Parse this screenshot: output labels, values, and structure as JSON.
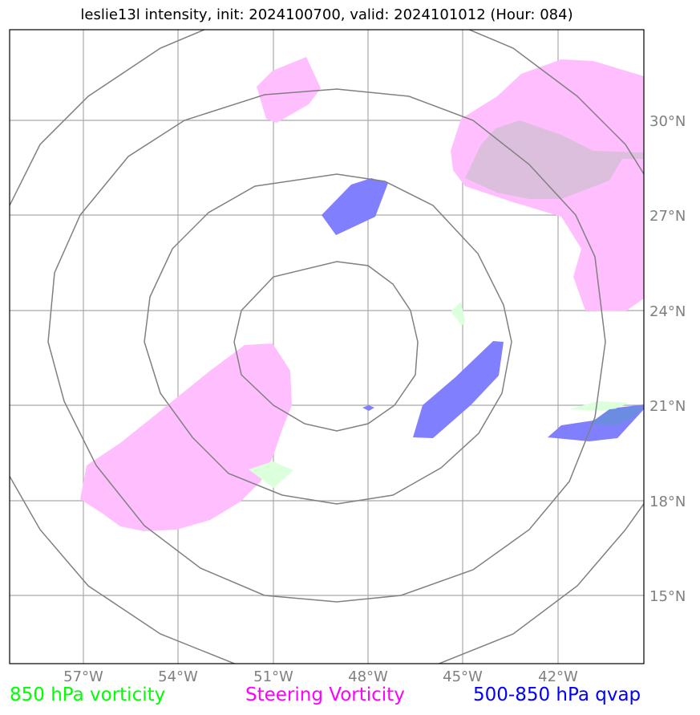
{
  "title": "leslie13l intensity, init: 2024100700, valid: 2024101012 (Hour: 084)",
  "longitude_ticks": [
    "57°W",
    "54°W",
    "51°W",
    "48°W",
    "45°W",
    "42°W"
  ],
  "latitude_ticks": [
    "30°N",
    "27°N",
    "24°N",
    "21°N",
    "18°N",
    "15°N"
  ],
  "legend": {
    "vort850": {
      "label": "850 hPa vorticity",
      "color": "#00ff00"
    },
    "steering": {
      "label": "Steering Vorticity",
      "color": "#ff00ff"
    },
    "qvap": {
      "label": "500-850 hPa qvap",
      "color": "#0000ff"
    }
  },
  "fill_colors": {
    "steering": "#ffbfff",
    "qvap": "#8080ff",
    "vort850": "#dcffdc",
    "overlap": "#dcbfdc"
  },
  "range_rings": 4,
  "map_extent": {
    "lon": [
      -59.3,
      -39.3
    ],
    "lat": [
      12.9,
      32.9
    ]
  }
}
